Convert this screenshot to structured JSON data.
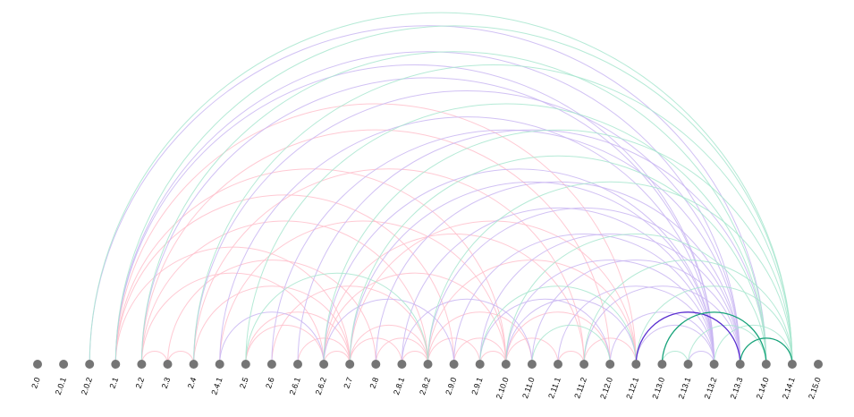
{
  "nodes": [
    {
      "label": "2.0"
    },
    {
      "label": "2.0.1"
    },
    {
      "label": "2.0.2"
    },
    {
      "label": "2.1"
    },
    {
      "label": "2.2"
    },
    {
      "label": "2.3"
    },
    {
      "label": "2.4"
    },
    {
      "label": "2.4.1"
    },
    {
      "label": "2.5"
    },
    {
      "label": "2.6"
    },
    {
      "label": "2.6.1"
    },
    {
      "label": "2.6.2"
    },
    {
      "label": "2.7"
    },
    {
      "label": "2.8"
    },
    {
      "label": "2.8.1"
    },
    {
      "label": "2.8.2"
    },
    {
      "label": "2.9.0"
    },
    {
      "label": "2.9.1"
    },
    {
      "label": "2.10.0"
    },
    {
      "label": "2.11.0"
    },
    {
      "label": "2.11.1"
    },
    {
      "label": "2.11.2"
    },
    {
      "label": "2.12.0"
    },
    {
      "label": "2.12.1"
    },
    {
      "label": "2.13.0"
    },
    {
      "label": "2.13.1"
    },
    {
      "label": "2.13.2"
    },
    {
      "label": "2.13.3"
    },
    {
      "label": "2.14.0"
    },
    {
      "label": "2.14.1"
    },
    {
      "label": "2.15.0"
    }
  ],
  "link_groups": [
    {
      "color": "#ffc0cb",
      "links": [
        [
          "2.1",
          "2.7"
        ],
        [
          "2.1",
          "2.9.0"
        ],
        [
          "2.1",
          "2.10.0"
        ],
        [
          "2.1",
          "2.12.1"
        ],
        [
          "2.2",
          "2.3"
        ],
        [
          "2.3",
          "2.4"
        ],
        [
          "2.2",
          "2.6.2"
        ],
        [
          "2.2",
          "2.8.2"
        ],
        [
          "2.3",
          "2.8"
        ],
        [
          "2.4",
          "2.7"
        ],
        [
          "2.4",
          "2.11.2"
        ],
        [
          "2.5",
          "2.6.2"
        ],
        [
          "2.5",
          "2.7"
        ],
        [
          "2.6",
          "2.8.2"
        ],
        [
          "2.6.1",
          "2.7"
        ],
        [
          "2.6.2",
          "2.7"
        ],
        [
          "2.6.2",
          "2.10.0"
        ],
        [
          "2.7",
          "2.8.1"
        ],
        [
          "2.7",
          "2.8.2"
        ],
        [
          "2.7",
          "2.12.1"
        ],
        [
          "2.8",
          "2.8.2"
        ],
        [
          "2.8.1",
          "2.8.2"
        ],
        [
          "2.8.2",
          "2.9.1"
        ],
        [
          "2.8.2",
          "2.11.0"
        ],
        [
          "2.9.0",
          "2.10.0"
        ],
        [
          "2.9.1",
          "2.10.0"
        ],
        [
          "2.10.0",
          "2.11.1"
        ],
        [
          "2.10.0",
          "2.12.0"
        ],
        [
          "2.11.1",
          "2.11.2"
        ],
        [
          "2.11.2",
          "2.12.1"
        ],
        [
          "2.6.2",
          "2.11.2"
        ],
        [
          "2.2",
          "2.12.0"
        ],
        [
          "2.4.1",
          "2.10.0"
        ],
        [
          "2.8.2",
          "2.12.1"
        ]
      ]
    },
    {
      "color": "#c9b6f2",
      "links": [
        [
          "2.0.2",
          "2.14.0"
        ],
        [
          "2.1",
          "2.13.2"
        ],
        [
          "2.1",
          "2.13.3"
        ],
        [
          "2.2",
          "2.13.2"
        ],
        [
          "2.4",
          "2.13.3"
        ],
        [
          "2.4.1",
          "2.13.2"
        ],
        [
          "2.6",
          "2.13.3"
        ],
        [
          "2.6.1",
          "2.14.0"
        ],
        [
          "2.6.2",
          "2.13.2"
        ],
        [
          "2.7",
          "2.13.2"
        ],
        [
          "2.8",
          "2.13.3"
        ],
        [
          "2.8.1",
          "2.13.2"
        ],
        [
          "2.8.2",
          "2.13.3"
        ],
        [
          "2.9.0",
          "2.13.2"
        ],
        [
          "2.9.1",
          "2.13.3"
        ],
        [
          "2.10.0",
          "2.13.2"
        ],
        [
          "2.11.0",
          "2.13.3"
        ],
        [
          "2.11.1",
          "2.13.2"
        ],
        [
          "2.11.2",
          "2.13.3"
        ],
        [
          "2.12.0",
          "2.13.2"
        ],
        [
          "2.12.1",
          "2.13.2"
        ],
        [
          "2.6.2",
          "2.9.0"
        ],
        [
          "2.8.1",
          "2.11.0"
        ],
        [
          "2.9.1",
          "2.12.0"
        ],
        [
          "2.4.1",
          "2.6.2"
        ],
        [
          "2.10.0",
          "2.12.1"
        ],
        [
          "2.13.1",
          "2.13.2"
        ]
      ]
    },
    {
      "color": "#a8e6cf",
      "links": [
        [
          "2.0.2",
          "2.14.1"
        ],
        [
          "2.1",
          "2.14.1"
        ],
        [
          "2.2",
          "2.14.0"
        ],
        [
          "2.4",
          "2.14.1"
        ],
        [
          "2.5",
          "2.14.0"
        ],
        [
          "2.6.2",
          "2.14.1"
        ],
        [
          "2.7",
          "2.14.0"
        ],
        [
          "2.8.2",
          "2.14.1"
        ],
        [
          "2.10.0",
          "2.14.0"
        ],
        [
          "2.11.2",
          "2.14.1"
        ],
        [
          "2.12.1",
          "2.14.1"
        ],
        [
          "2.13.2",
          "2.14.1"
        ],
        [
          "2.5",
          "2.8.2"
        ],
        [
          "2.9.1",
          "2.12.1"
        ],
        [
          "2.11.0",
          "2.12.0"
        ],
        [
          "2.13.1",
          "2.14.0"
        ],
        [
          "2.13.0",
          "2.13.1"
        ]
      ]
    },
    {
      "color": "#5a2fd0",
      "links": [
        [
          "2.12.1",
          "2.13.3"
        ]
      ]
    },
    {
      "color": "#17a37a",
      "links": [
        [
          "2.13.0",
          "2.14.0"
        ],
        [
          "2.13.3",
          "2.14.1"
        ]
      ]
    }
  ]
}
